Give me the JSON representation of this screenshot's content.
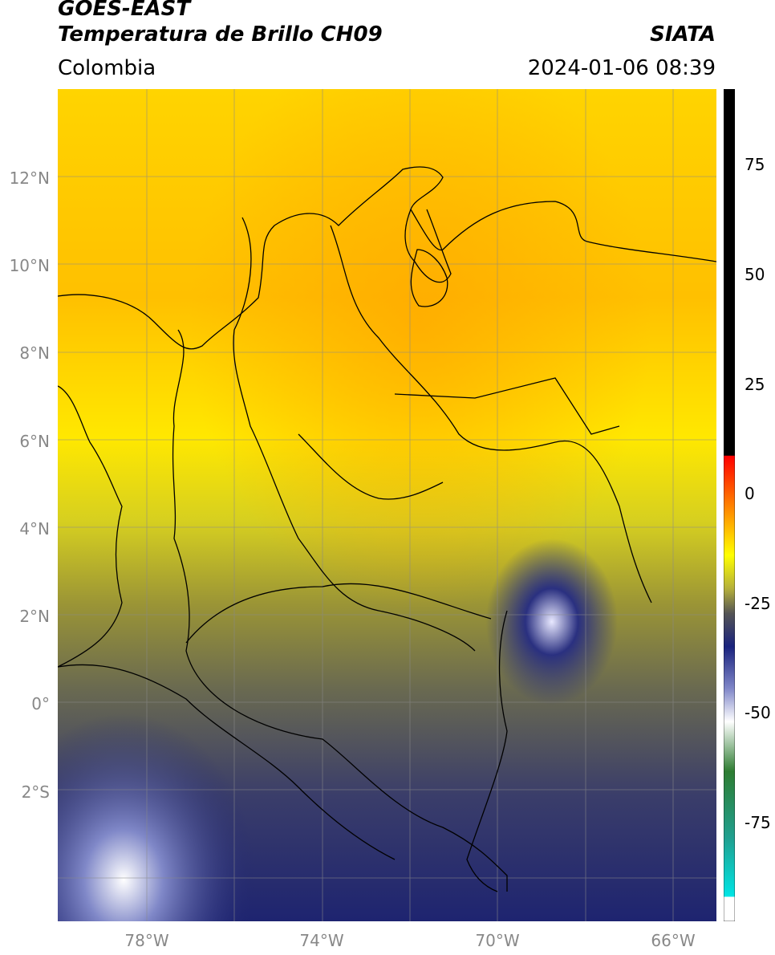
{
  "header": {
    "satellite": "GOES-EAST",
    "product": "Temperatura de Brillo CH09",
    "region": "Colombia",
    "org": "SIATA",
    "datetime": "2024-01-06 08:39"
  },
  "map": {
    "lon_range": [
      -80,
      -65
    ],
    "lat_range": [
      -5,
      14
    ],
    "lat_ticks": [
      "12°N",
      "10°N",
      "8°N",
      "6°N",
      "4°N",
      "2°N",
      "0°",
      "2°S"
    ],
    "lon_ticks": [
      "78°W",
      "74°W",
      "70°W",
      "66°W"
    ],
    "grid": true
  },
  "colorbar": {
    "ticks": [
      "75",
      "50",
      "25",
      "0",
      "-25",
      "-50",
      "-75"
    ],
    "tick_values": [
      75,
      50,
      25,
      0,
      -25,
      -50,
      -75
    ],
    "range": [
      -100,
      90
    ],
    "colors": {
      "black": "#000000",
      "red": "#e00000",
      "orange": "#ff9900",
      "yellow": "#ffff00",
      "olive": "#8c8c3a",
      "navy": "#1c2277",
      "white": "#ffffff",
      "green": "#2e7d32",
      "teal": "#20b2aa",
      "cyan": "#00e5e5"
    }
  }
}
